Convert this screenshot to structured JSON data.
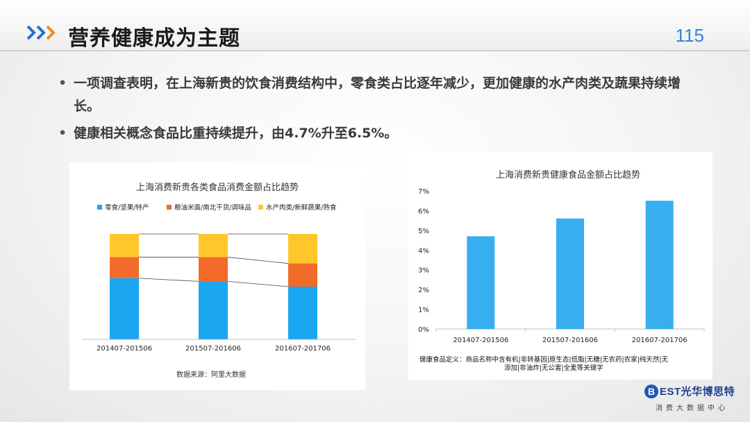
{
  "header": {
    "title": "营养健康成为主题",
    "page_number": "115",
    "chevron_color": "#f08c1a"
  },
  "bullets": [
    {
      "text": "一项调查表明，在上海新贵的饮食消费结构中，零食类占比逐年减少，更加健康的水产肉类及蔬果持续增长。"
    },
    {
      "text": "健康相关概念食品比重持续提升，由4.7%升至6.5%。"
    }
  ],
  "chart_data": [
    {
      "type": "bar",
      "stacked": true,
      "percent_stacked": true,
      "title": "上海消费新贵各类食品消费金额占比趋势",
      "categories": [
        "201407-201506",
        "201507-201606",
        "201607-201706"
      ],
      "series": [
        {
          "name": "零食/坚果/特产",
          "color": "#1aa6f0",
          "values": [
            0.58,
            0.55,
            0.5
          ]
        },
        {
          "name": "粮油米面/南北干货/调味品",
          "color": "#f26b2a",
          "values": [
            0.2,
            0.23,
            0.22
          ]
        },
        {
          "name": "水产肉类/新鲜蔬果/熟食",
          "color": "#ffc72c",
          "values": [
            0.22,
            0.22,
            0.28
          ]
        }
      ],
      "legend_position": "top",
      "connector_lines": true,
      "grid": false,
      "source": "数据来源：阿里大数据"
    },
    {
      "type": "bar",
      "title": "上海消费新贵健康食品金额占比趋势",
      "categories": [
        "201407-201506",
        "201507-201606",
        "201607-201706"
      ],
      "values": [
        4.7,
        5.6,
        6.5
      ],
      "unit": "%",
      "ylim": [
        0,
        7
      ],
      "yticks": [
        "0%",
        "1%",
        "2%",
        "3%",
        "4%",
        "5%",
        "6%",
        "7%"
      ],
      "color": "#36aef0",
      "grid": false,
      "footnote_lines": [
        "健康食品定义：商品名称中含有机|非转基因|原生态|低脂|无糖|无农药|农家|纯天然|无",
        "添加|非油炸|无公害|全麦等关键字"
      ]
    }
  ],
  "logo": {
    "badge": "B",
    "name": "EST光华博思特",
    "subtitle": "消费大数据中心",
    "color": "#1f56b8"
  }
}
